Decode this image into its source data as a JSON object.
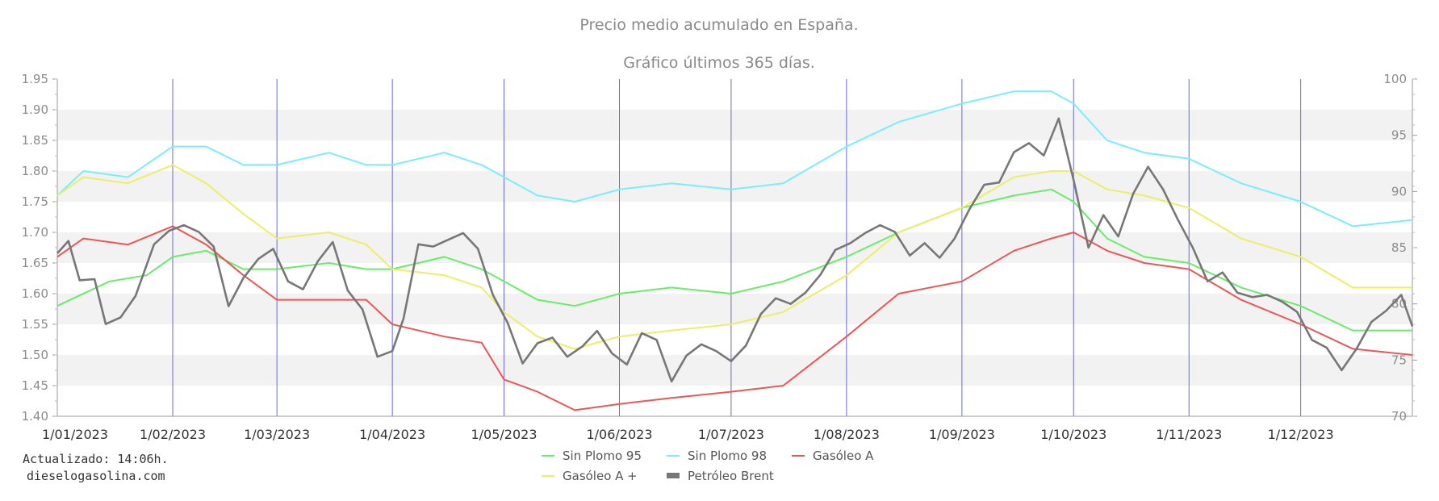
{
  "chart_data": {
    "type": "line",
    "title": "Precio medio acumulado en España.",
    "subtitle": "Gráfico últimos 365 días.",
    "x_start": "2023-01-01",
    "x_end": "2023-12-31",
    "x_ticks": [
      {
        "date": "2023-01-01",
        "label": "1/01/2023"
      },
      {
        "date": "2023-02-01",
        "label": "1/02/2023"
      },
      {
        "date": "2023-03-01",
        "label": "1/03/2023"
      },
      {
        "date": "2023-04-01",
        "label": "1/04/2023"
      },
      {
        "date": "2023-05-01",
        "label": "1/05/2023"
      },
      {
        "date": "2023-06-01",
        "label": "1/06/2023"
      },
      {
        "date": "2023-07-01",
        "label": "1/07/2023"
      },
      {
        "date": "2023-08-01",
        "label": "1/08/2023"
      },
      {
        "date": "2023-09-01",
        "label": "1/09/2023"
      },
      {
        "date": "2023-10-01",
        "label": "1/10/2023"
      },
      {
        "date": "2023-11-01",
        "label": "1/11/2023"
      },
      {
        "date": "2023-12-01",
        "label": "1/12/2023"
      }
    ],
    "y_left": {
      "min": 1.4,
      "max": 1.95,
      "step": 0.05,
      "ticks": [
        "1.40",
        "1.45",
        "1.50",
        "1.55",
        "1.60",
        "1.65",
        "1.70",
        "1.75",
        "1.80",
        "1.85",
        "1.90",
        "1.95"
      ]
    },
    "y_right": {
      "min": 70,
      "max": 100,
      "step": 5,
      "ticks": [
        "70",
        "75",
        "80",
        "85",
        "90",
        "95",
        "100"
      ]
    },
    "grid": true,
    "legend_position": "bottom",
    "series": [
      {
        "name": "Sin Plomo 95",
        "axis": "left",
        "color": "#66ee66",
        "points": [
          [
            "2023-01-01",
            1.58
          ],
          [
            "2023-01-15",
            1.62
          ],
          [
            "2023-01-25",
            1.63
          ],
          [
            "2023-02-01",
            1.66
          ],
          [
            "2023-02-10",
            1.67
          ],
          [
            "2023-02-20",
            1.64
          ],
          [
            "2023-03-01",
            1.64
          ],
          [
            "2023-03-15",
            1.65
          ],
          [
            "2023-03-25",
            1.64
          ],
          [
            "2023-04-01",
            1.64
          ],
          [
            "2023-04-15",
            1.66
          ],
          [
            "2023-04-25",
            1.64
          ],
          [
            "2023-05-01",
            1.62
          ],
          [
            "2023-05-10",
            1.59
          ],
          [
            "2023-05-20",
            1.58
          ],
          [
            "2023-06-01",
            1.6
          ],
          [
            "2023-06-15",
            1.61
          ],
          [
            "2023-07-01",
            1.6
          ],
          [
            "2023-07-15",
            1.62
          ],
          [
            "2023-08-01",
            1.66
          ],
          [
            "2023-08-15",
            1.7
          ],
          [
            "2023-09-01",
            1.74
          ],
          [
            "2023-09-15",
            1.76
          ],
          [
            "2023-09-25",
            1.77
          ],
          [
            "2023-10-01",
            1.75
          ],
          [
            "2023-10-10",
            1.69
          ],
          [
            "2023-10-20",
            1.66
          ],
          [
            "2023-11-01",
            1.65
          ],
          [
            "2023-11-15",
            1.61
          ],
          [
            "2023-12-01",
            1.58
          ],
          [
            "2023-12-15",
            1.54
          ],
          [
            "2023-12-31",
            1.54
          ]
        ]
      },
      {
        "name": "Sin Plomo 98",
        "axis": "left",
        "color": "#77eeff",
        "points": [
          [
            "2023-01-01",
            1.76
          ],
          [
            "2023-01-08",
            1.8
          ],
          [
            "2023-01-20",
            1.79
          ],
          [
            "2023-02-01",
            1.84
          ],
          [
            "2023-02-10",
            1.84
          ],
          [
            "2023-02-20",
            1.81
          ],
          [
            "2023-03-01",
            1.81
          ],
          [
            "2023-03-15",
            1.83
          ],
          [
            "2023-03-25",
            1.81
          ],
          [
            "2023-04-01",
            1.81
          ],
          [
            "2023-04-15",
            1.83
          ],
          [
            "2023-04-25",
            1.81
          ],
          [
            "2023-05-01",
            1.79
          ],
          [
            "2023-05-10",
            1.76
          ],
          [
            "2023-05-20",
            1.75
          ],
          [
            "2023-06-01",
            1.77
          ],
          [
            "2023-06-15",
            1.78
          ],
          [
            "2023-07-01",
            1.77
          ],
          [
            "2023-07-15",
            1.78
          ],
          [
            "2023-08-01",
            1.84
          ],
          [
            "2023-08-15",
            1.88
          ],
          [
            "2023-09-01",
            1.91
          ],
          [
            "2023-09-15",
            1.93
          ],
          [
            "2023-09-25",
            1.93
          ],
          [
            "2023-10-01",
            1.91
          ],
          [
            "2023-10-10",
            1.85
          ],
          [
            "2023-10-20",
            1.83
          ],
          [
            "2023-11-01",
            1.82
          ],
          [
            "2023-11-15",
            1.78
          ],
          [
            "2023-12-01",
            1.75
          ],
          [
            "2023-12-15",
            1.71
          ],
          [
            "2023-12-31",
            1.72
          ]
        ]
      },
      {
        "name": "Gasóleo A",
        "axis": "left",
        "color": "#ee5555",
        "points": [
          [
            "2023-01-01",
            1.66
          ],
          [
            "2023-01-08",
            1.69
          ],
          [
            "2023-01-20",
            1.68
          ],
          [
            "2023-02-01",
            1.71
          ],
          [
            "2023-02-10",
            1.68
          ],
          [
            "2023-02-20",
            1.63
          ],
          [
            "2023-03-01",
            1.59
          ],
          [
            "2023-03-15",
            1.59
          ],
          [
            "2023-03-25",
            1.59
          ],
          [
            "2023-04-01",
            1.55
          ],
          [
            "2023-04-15",
            1.53
          ],
          [
            "2023-04-25",
            1.52
          ],
          [
            "2023-05-01",
            1.46
          ],
          [
            "2023-05-10",
            1.44
          ],
          [
            "2023-05-20",
            1.41
          ],
          [
            "2023-06-01",
            1.42
          ],
          [
            "2023-06-15",
            1.43
          ],
          [
            "2023-07-01",
            1.44
          ],
          [
            "2023-07-15",
            1.45
          ],
          [
            "2023-08-01",
            1.53
          ],
          [
            "2023-08-15",
            1.6
          ],
          [
            "2023-09-01",
            1.62
          ],
          [
            "2023-09-15",
            1.67
          ],
          [
            "2023-09-25",
            1.69
          ],
          [
            "2023-10-01",
            1.7
          ],
          [
            "2023-10-10",
            1.67
          ],
          [
            "2023-10-20",
            1.65
          ],
          [
            "2023-11-01",
            1.64
          ],
          [
            "2023-11-15",
            1.59
          ],
          [
            "2023-12-01",
            1.55
          ],
          [
            "2023-12-15",
            1.51
          ],
          [
            "2023-12-31",
            1.5
          ]
        ]
      },
      {
        "name": "Gasóleo A +",
        "axis": "left",
        "color": "#eeee66",
        "points": [
          [
            "2023-01-01",
            1.76
          ],
          [
            "2023-01-08",
            1.79
          ],
          [
            "2023-01-20",
            1.78
          ],
          [
            "2023-02-01",
            1.81
          ],
          [
            "2023-02-10",
            1.78
          ],
          [
            "2023-02-20",
            1.73
          ],
          [
            "2023-03-01",
            1.69
          ],
          [
            "2023-03-15",
            1.7
          ],
          [
            "2023-03-25",
            1.68
          ],
          [
            "2023-04-01",
            1.64
          ],
          [
            "2023-04-15",
            1.63
          ],
          [
            "2023-04-25",
            1.61
          ],
          [
            "2023-05-01",
            1.57
          ],
          [
            "2023-05-10",
            1.53
          ],
          [
            "2023-05-20",
            1.51
          ],
          [
            "2023-06-01",
            1.53
          ],
          [
            "2023-06-15",
            1.54
          ],
          [
            "2023-07-01",
            1.55
          ],
          [
            "2023-07-15",
            1.57
          ],
          [
            "2023-08-01",
            1.63
          ],
          [
            "2023-08-15",
            1.7
          ],
          [
            "2023-09-01",
            1.74
          ],
          [
            "2023-09-15",
            1.79
          ],
          [
            "2023-09-25",
            1.8
          ],
          [
            "2023-10-01",
            1.8
          ],
          [
            "2023-10-10",
            1.77
          ],
          [
            "2023-10-20",
            1.76
          ],
          [
            "2023-11-01",
            1.74
          ],
          [
            "2023-11-15",
            1.69
          ],
          [
            "2023-12-01",
            1.66
          ],
          [
            "2023-12-15",
            1.61
          ],
          [
            "2023-12-31",
            1.61
          ]
        ]
      },
      {
        "name": "Petróleo Brent",
        "axis": "right",
        "color": "#777777",
        "points": [
          [
            "2023-01-01",
            84.5
          ],
          [
            "2023-01-04",
            85.6
          ],
          [
            "2023-01-07",
            82.1
          ],
          [
            "2023-01-11",
            82.2
          ],
          [
            "2023-01-14",
            78.2
          ],
          [
            "2023-01-18",
            78.8
          ],
          [
            "2023-01-22",
            80.7
          ],
          [
            "2023-01-27",
            85.3
          ],
          [
            "2023-01-31",
            86.5
          ],
          [
            "2023-02-04",
            87.0
          ],
          [
            "2023-02-08",
            86.4
          ],
          [
            "2023-02-12",
            85.1
          ],
          [
            "2023-02-16",
            79.8
          ],
          [
            "2023-02-20",
            82.3
          ],
          [
            "2023-02-24",
            84.0
          ],
          [
            "2023-02-28",
            84.9
          ],
          [
            "2023-03-04",
            82.0
          ],
          [
            "2023-03-08",
            81.3
          ],
          [
            "2023-03-12",
            83.8
          ],
          [
            "2023-03-16",
            85.5
          ],
          [
            "2023-03-20",
            81.2
          ],
          [
            "2023-03-24",
            79.5
          ],
          [
            "2023-03-28",
            75.3
          ],
          [
            "2023-04-01",
            75.8
          ],
          [
            "2023-04-04",
            78.7
          ],
          [
            "2023-04-08",
            85.3
          ],
          [
            "2023-04-12",
            85.1
          ],
          [
            "2023-04-16",
            85.7
          ],
          [
            "2023-04-20",
            86.3
          ],
          [
            "2023-04-24",
            84.9
          ],
          [
            "2023-04-28",
            80.8
          ],
          [
            "2023-05-02",
            78.3
          ],
          [
            "2023-05-06",
            74.7
          ],
          [
            "2023-05-10",
            76.5
          ],
          [
            "2023-05-14",
            77.0
          ],
          [
            "2023-05-18",
            75.3
          ],
          [
            "2023-05-22",
            76.2
          ],
          [
            "2023-05-26",
            77.6
          ],
          [
            "2023-05-30",
            75.6
          ],
          [
            "2023-06-03",
            74.6
          ],
          [
            "2023-06-07",
            77.4
          ],
          [
            "2023-06-11",
            76.8
          ],
          [
            "2023-06-15",
            73.1
          ],
          [
            "2023-06-19",
            75.4
          ],
          [
            "2023-06-23",
            76.4
          ],
          [
            "2023-06-27",
            75.8
          ],
          [
            "2023-07-01",
            74.9
          ],
          [
            "2023-07-05",
            76.3
          ],
          [
            "2023-07-09",
            79.1
          ],
          [
            "2023-07-13",
            80.5
          ],
          [
            "2023-07-17",
            80.0
          ],
          [
            "2023-07-21",
            81.0
          ],
          [
            "2023-07-25",
            82.6
          ],
          [
            "2023-07-29",
            84.8
          ],
          [
            "2023-08-02",
            85.4
          ],
          [
            "2023-08-06",
            86.3
          ],
          [
            "2023-08-10",
            87.0
          ],
          [
            "2023-08-14",
            86.4
          ],
          [
            "2023-08-18",
            84.3
          ],
          [
            "2023-08-22",
            85.4
          ],
          [
            "2023-08-26",
            84.1
          ],
          [
            "2023-08-30",
            85.8
          ],
          [
            "2023-09-03",
            88.4
          ],
          [
            "2023-09-07",
            90.6
          ],
          [
            "2023-09-11",
            90.8
          ],
          [
            "2023-09-15",
            93.5
          ],
          [
            "2023-09-19",
            94.3
          ],
          [
            "2023-09-23",
            93.2
          ],
          [
            "2023-09-27",
            96.5
          ],
          [
            "2023-10-01",
            91.0
          ],
          [
            "2023-10-05",
            85.0
          ],
          [
            "2023-10-09",
            87.9
          ],
          [
            "2023-10-13",
            86.0
          ],
          [
            "2023-10-17",
            89.8
          ],
          [
            "2023-10-21",
            92.2
          ],
          [
            "2023-10-25",
            90.2
          ],
          [
            "2023-10-29",
            87.5
          ],
          [
            "2023-11-02",
            85.0
          ],
          [
            "2023-11-06",
            82.0
          ],
          [
            "2023-11-10",
            82.8
          ],
          [
            "2023-11-14",
            81.0
          ],
          [
            "2023-11-18",
            80.6
          ],
          [
            "2023-11-22",
            80.8
          ],
          [
            "2023-11-26",
            80.2
          ],
          [
            "2023-11-30",
            79.3
          ],
          [
            "2023-12-04",
            76.8
          ],
          [
            "2023-12-08",
            76.1
          ],
          [
            "2023-12-12",
            74.1
          ],
          [
            "2023-12-16",
            76.0
          ],
          [
            "2023-12-20",
            78.4
          ],
          [
            "2023-12-24",
            79.4
          ],
          [
            "2023-12-28",
            80.8
          ],
          [
            "2023-12-31",
            78.0
          ]
        ]
      }
    ]
  },
  "footer": {
    "updated": "Actualizado: 14:06h.",
    "site": "dieselogasolina.com"
  }
}
